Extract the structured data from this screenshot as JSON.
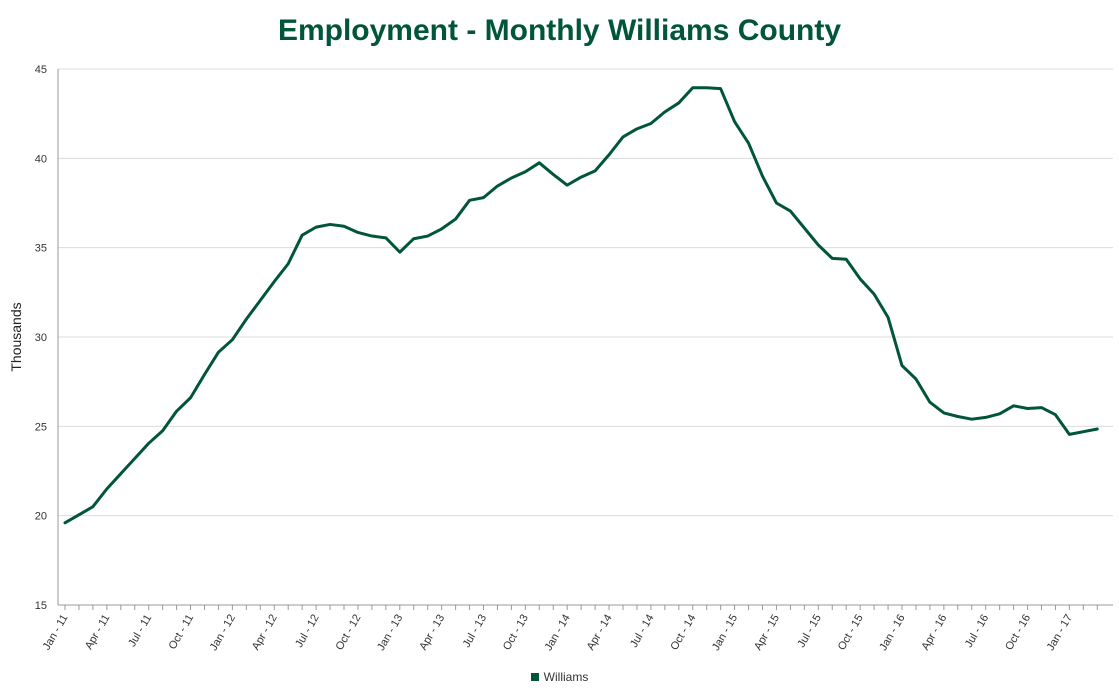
{
  "chart_data": {
    "type": "line",
    "title": "Employment - Monthly Williams County",
    "xlabel": "",
    "ylabel": "Thousands",
    "ylim": [
      15,
      45
    ],
    "yticks": [
      15,
      20,
      25,
      30,
      35,
      40,
      45
    ],
    "grid": true,
    "legend_position": "bottom-center",
    "x_tick_labels": [
      "Jan - 11",
      "Apr - 11",
      "Jul - 11",
      "Oct - 11",
      "Jan - 12",
      "Apr - 12",
      "Jul - 12",
      "Oct - 12",
      "Jan - 13",
      "Apr - 13",
      "Jul - 13",
      "Oct - 13",
      "Jan - 14",
      "Apr - 14",
      "Jul - 14",
      "Oct - 14",
      "Jan - 15",
      "Apr - 15",
      "Jul - 15",
      "Oct - 15",
      "Jan - 16",
      "Apr - 16",
      "Jul - 16",
      "Oct - 16",
      "Jan - 17"
    ],
    "x_start": "Jan - 11",
    "series": [
      {
        "name": "Williams",
        "color": "#00553a",
        "values": [
          19.6,
          20.05,
          20.5,
          21.5,
          22.35,
          23.2,
          24.05,
          24.75,
          25.85,
          26.6,
          27.9,
          29.15,
          29.85,
          31.0,
          32.05,
          33.1,
          34.1,
          35.7,
          36.15,
          36.3,
          36.2,
          35.85,
          35.65,
          35.55,
          34.75,
          35.5,
          35.65,
          36.05,
          36.6,
          37.65,
          37.8,
          38.45,
          38.9,
          39.25,
          39.75,
          39.1,
          38.5,
          38.95,
          39.3,
          40.2,
          41.2,
          41.65,
          41.95,
          42.6,
          43.1,
          43.95,
          43.95,
          43.9,
          42.05,
          40.85,
          39.0,
          37.5,
          37.05,
          36.1,
          35.15,
          34.4,
          34.35,
          33.25,
          32.4,
          31.1,
          28.4,
          27.65,
          26.35,
          25.75,
          25.55,
          25.4,
          25.5,
          25.7,
          26.15,
          26.0,
          26.05,
          25.65,
          24.55,
          24.7,
          24.85
        ]
      }
    ]
  }
}
